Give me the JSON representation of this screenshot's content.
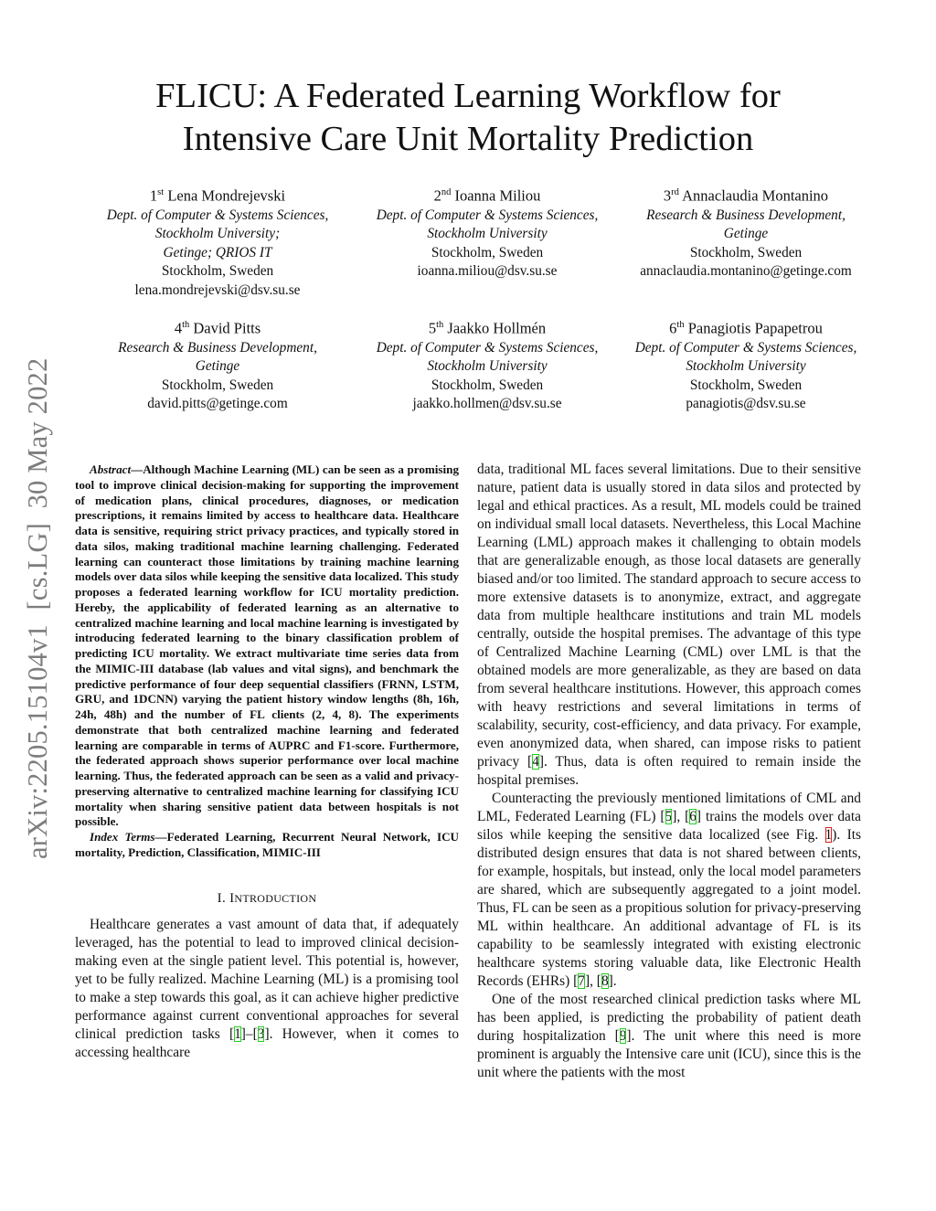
{
  "title": [
    "FLICU: A Federated Learning Workflow for",
    "Intensive Care Unit Mortality Prediction"
  ],
  "arxiv_stamp": "arXiv:2205.15104v1  [cs.LG]  30 May 2022",
  "authors": [
    {
      "ord": "1",
      "sup": "st",
      "name": "Lena Mondrejevski",
      "aff": [
        "Dept. of Computer & Systems Sciences,",
        "Stockholm University;",
        "Getinge; QRIOS IT"
      ],
      "loc": "Stockholm, Sweden",
      "email": "lena.mondrejevski@dsv.su.se"
    },
    {
      "ord": "2",
      "sup": "nd",
      "name": "Ioanna Miliou",
      "aff": [
        "Dept. of Computer & Systems Sciences,",
        "Stockholm University"
      ],
      "loc": "Stockholm, Sweden",
      "email": "ioanna.miliou@dsv.su.se"
    },
    {
      "ord": "3",
      "sup": "rd",
      "name": "Annaclaudia Montanino",
      "aff": [
        "Research & Business Development,",
        "Getinge"
      ],
      "loc": "Stockholm, Sweden",
      "email": "annaclaudia.montanino@getinge.com"
    },
    {
      "ord": "4",
      "sup": "th",
      "name": "David Pitts",
      "aff": [
        "Research & Business Development,",
        "Getinge"
      ],
      "loc": "Stockholm, Sweden",
      "email": "david.pitts@getinge.com"
    },
    {
      "ord": "5",
      "sup": "th",
      "name": "Jaakko Hollmén",
      "aff": [
        "Dept. of Computer & Systems Sciences,",
        "Stockholm University"
      ],
      "loc": "Stockholm, Sweden",
      "email": "jaakko.hollmen@dsv.su.se"
    },
    {
      "ord": "6",
      "sup": "th",
      "name": "Panagiotis Papapetrou",
      "aff": [
        "Dept. of Computer & Systems Sciences,",
        "Stockholm University"
      ],
      "loc": "Stockholm, Sweden",
      "email": "panagiotis@dsv.su.se"
    }
  ],
  "abstract": {
    "lead": "Abstract",
    "text": "—Although Machine Learning (ML) can be seen as a promising tool to improve clinical decision-making for support­ing the improvement of medication plans, clinical procedures, diagnoses, or medication prescriptions, it remains limited by access to healthcare data. Healthcare data is sensitive, requiring strict privacy practices, and typically stored in data silos, making traditional machine learning challenging. Federated learning can counteract those limitations by training machine learning models over data silos while keeping the sensitive data localized. This study proposes a federated learning workflow for ICU mortality prediction. Hereby, the applicability of federated learning as an alternative to centralized machine learning and local machine learning is investigated by introducing federated learning to the binary classification problem of predicting ICU mortality. We extract multivariate time series data from the MIMIC-III database (lab values and vital signs), and benchmark the predictive performance of four deep sequential classifiers (FRNN, LSTM, GRU, and 1DCNN) varying the patient history window lengths (8h, 16h, 24h, 48h) and the number of FL clients (2, 4, 8). The experiments demonstrate that both centralized machine learning and federated learning are comparable in terms of AUPRC and F1-score. Furthermore, the federated approach shows superior performance over local machine learning. Thus, the federated approach can be seen as a valid and privacy-preserving alternative to centralized machine learning for classi­fying ICU mortality when sharing sensitive patient data between hospitals is not possible."
  },
  "index_terms": {
    "lead": "Index Terms",
    "text": "—Federated Learning, Recurrent Neural Network, ICU mortality, Prediction, Classification, MIMIC-III"
  },
  "section": {
    "num": "I. ",
    "first": "I",
    "rest": "NTRODUCTION"
  },
  "paragraphs_left": [
    [
      {
        "t": "Healthcare generates a vast amount of data that, if ade­quately leveraged, has the potential to lead to improved clinical decision-making even at the single patient level. This potential is, however, yet to be fully realized. Machine Learning (ML) is a promising tool to make a step towards this goal, as it can achieve higher predictive performance against current conventional approaches for several clinical prediction tasks ["
      },
      {
        "c": "1"
      },
      {
        "t": "]–["
      },
      {
        "c": "3"
      },
      {
        "t": "]. However, when it comes to accessing healthcare"
      }
    ]
  ],
  "paragraphs_right": [
    [
      {
        "t": "data, traditional ML faces several limitations. Due to their sensitive nature, patient data is usually stored in data silos and protected by legal and ethical practices. As a result, ML models could be trained on individual small local datasets. Nevertheless, this Local Machine Learning (LML) approach makes it challenging to obtain models that are generalizable enough, as those local datasets are generally biased and/or too limited. The standard approach to secure access to more extensive datasets is to anonymize, extract, and aggregate data from multiple healthcare institutions and train ML models centrally, outside the hospital premises. The advantage of this type of Centralized Machine Learning (CML) over LML is that the obtained models are more generalizable, as they are based on data from several healthcare institutions. However, this approach comes with heavy restrictions and several limita­tions in terms of scalability, security, cost-efficiency, and data privacy. For example, even anonymized data, when shared, can impose risks to patient privacy ["
      },
      {
        "c": "4"
      },
      {
        "t": "]. Thus, data is often required to remain inside the hospital premises."
      }
    ],
    [
      {
        "t": "Counteracting the previously mentioned limitations of CML and LML, Federated Learning (FL) ["
      },
      {
        "c": "5"
      },
      {
        "t": "], ["
      },
      {
        "c": "6"
      },
      {
        "t": "] trains the models over data silos while keeping the sensitive data localized (see Fig. "
      },
      {
        "f": "1"
      },
      {
        "t": "). Its distributed design ensures that data is not shared between clients, for example, hospitals, but instead, only the local model parameters are shared, which are subsequently aggregated to a joint model. Thus, FL can be seen as a propi­tious solution for privacy-preserving ML within healthcare. An additional advantage of FL is its capability to be seamlessly integrated with existing electronic healthcare systems storing valuable data, like Electronic Health Records (EHRs) ["
      },
      {
        "c": "7"
      },
      {
        "t": "], ["
      },
      {
        "c": "8"
      },
      {
        "t": "]."
      }
    ],
    [
      {
        "t": "One of the most researched clinical prediction tasks where ML has been applied, is predicting the probability of pa­tient death during hospitalization ["
      },
      {
        "c": "9"
      },
      {
        "t": "]. The unit where this need is more prominent is arguably the Intensive care unit (ICU), since this is the unit where the patients with the most"
      }
    ]
  ],
  "colors": {
    "citation_box": "#22d322",
    "figure_ref_box": "#e02020",
    "arxiv_stamp": "#7d7d7d"
  }
}
